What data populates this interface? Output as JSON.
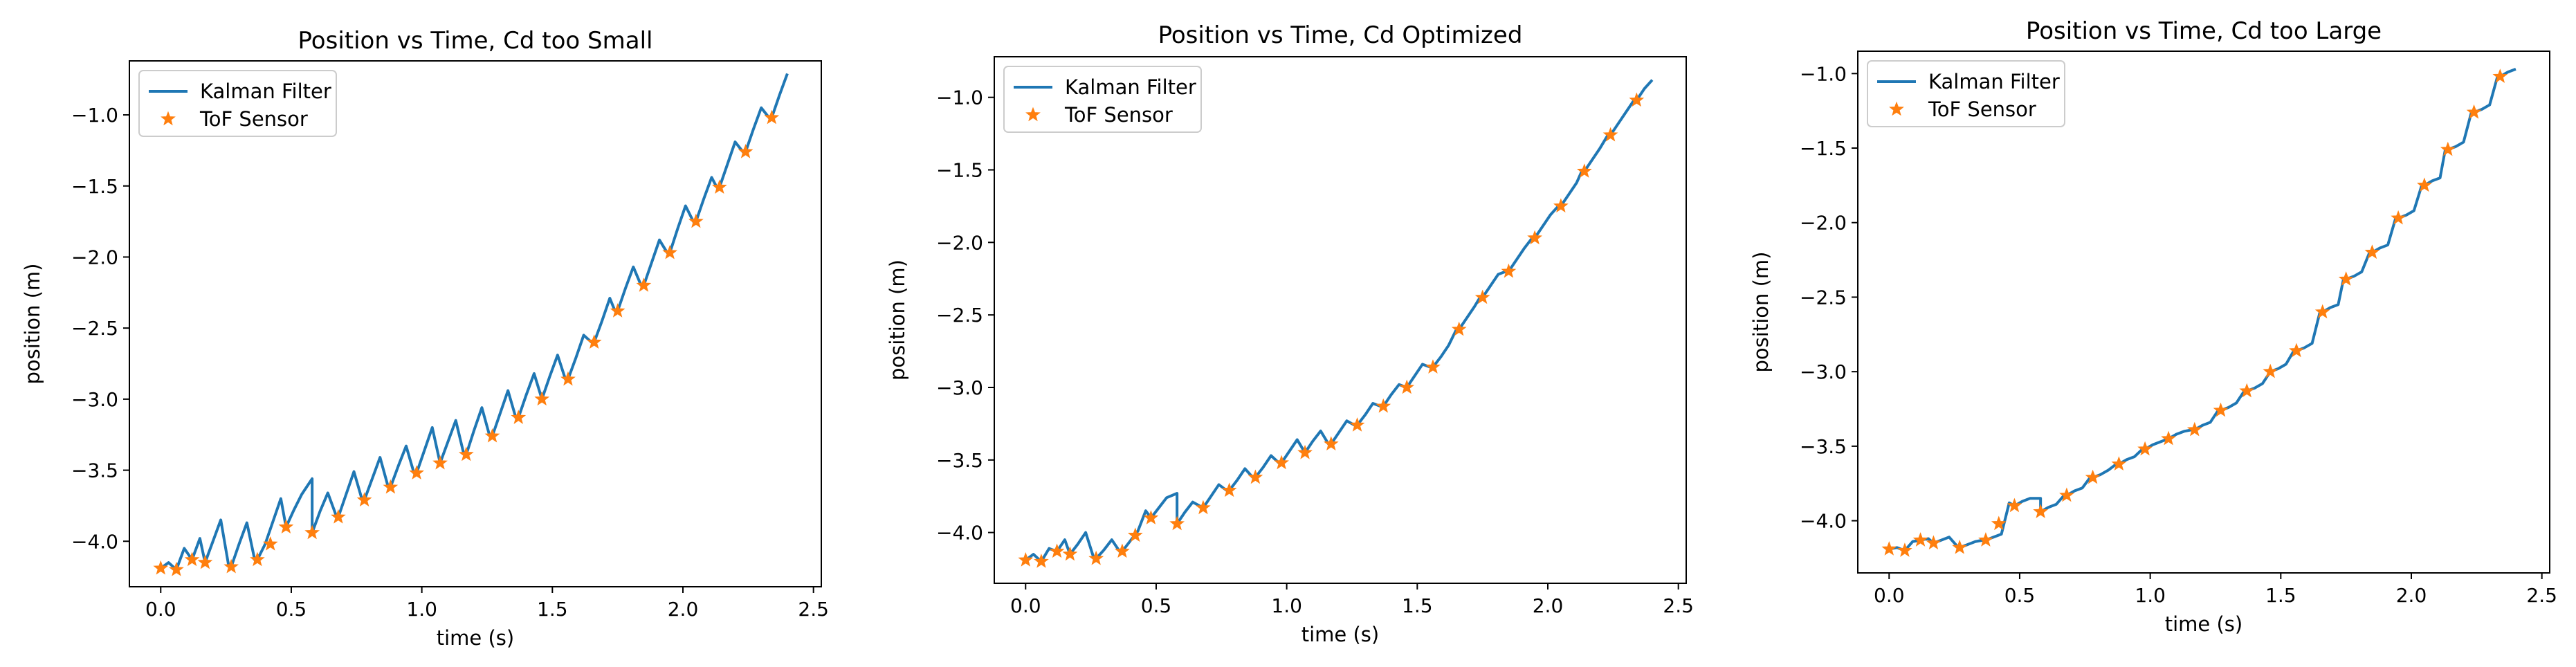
{
  "chart_data": [
    {
      "type": "line",
      "title": "Position vs Time, Cd too Small",
      "xlabel": "time (s)",
      "ylabel": "position (m)",
      "xlim": [
        -0.12,
        2.53
      ],
      "ylim": [
        -4.32,
        -0.62
      ],
      "xticks": [
        0.0,
        0.5,
        1.0,
        1.5,
        2.0,
        2.5
      ],
      "xtick_labels": [
        "0.0",
        "0.5",
        "1.0",
        "1.5",
        "2.0",
        "2.5"
      ],
      "yticks": [
        -4.0,
        -3.5,
        -3.0,
        -2.5,
        -2.0,
        -1.5,
        -1.0
      ],
      "ytick_labels": [
        "−4.0",
        "−3.5",
        "−3.0",
        "−2.5",
        "−2.0",
        "−1.5",
        "−1.0"
      ],
      "grid": false,
      "legend": "upper-left",
      "colors": {
        "kalman": "#1f77b4",
        "tof": "#ff7f0e"
      },
      "series": [
        {
          "name": "Kalman Filter",
          "style": "line",
          "x": [
            0.0,
            0.03,
            0.06,
            0.09,
            0.12,
            0.15,
            0.17,
            0.2,
            0.23,
            0.26,
            0.27,
            0.3,
            0.33,
            0.36,
            0.37,
            0.4,
            0.43,
            0.46,
            0.48,
            0.51,
            0.54,
            0.58,
            0.58,
            0.61,
            0.64,
            0.67,
            0.68,
            0.71,
            0.74,
            0.77,
            0.78,
            0.81,
            0.84,
            0.87,
            0.88,
            0.91,
            0.94,
            0.97,
            0.98,
            1.01,
            1.04,
            1.07,
            1.07,
            1.1,
            1.13,
            1.16,
            1.17,
            1.2,
            1.23,
            1.26,
            1.27,
            1.3,
            1.33,
            1.36,
            1.37,
            1.4,
            1.43,
            1.46,
            1.46,
            1.49,
            1.52,
            1.55,
            1.56,
            1.59,
            1.62,
            1.65,
            1.66,
            1.69,
            1.72,
            1.74,
            1.75,
            1.78,
            1.81,
            1.84,
            1.85,
            1.88,
            1.91,
            1.94,
            1.95,
            1.98,
            2.01,
            2.04,
            2.05,
            2.08,
            2.11,
            2.13,
            2.14,
            2.17,
            2.2,
            2.23,
            2.24,
            2.27,
            2.3,
            2.33,
            2.34,
            2.37,
            2.4
          ],
          "y": [
            -4.19,
            -4.15,
            -4.2,
            -4.05,
            -4.13,
            -3.98,
            -4.15,
            -4.0,
            -3.85,
            -4.17,
            -4.18,
            -4.02,
            -3.87,
            -4.13,
            -4.13,
            -4.02,
            -3.86,
            -3.7,
            -3.9,
            -3.78,
            -3.67,
            -3.56,
            -3.94,
            -3.79,
            -3.66,
            -3.81,
            -3.83,
            -3.67,
            -3.51,
            -3.7,
            -3.71,
            -3.56,
            -3.41,
            -3.61,
            -3.62,
            -3.47,
            -3.33,
            -3.52,
            -3.52,
            -3.36,
            -3.2,
            -3.45,
            -3.45,
            -3.3,
            -3.15,
            -3.38,
            -3.39,
            -3.22,
            -3.06,
            -3.26,
            -3.26,
            -3.1,
            -2.94,
            -3.13,
            -3.13,
            -2.97,
            -2.82,
            -3.0,
            -3.0,
            -2.84,
            -2.69,
            -2.86,
            -2.86,
            -2.71,
            -2.55,
            -2.6,
            -2.6,
            -2.45,
            -2.29,
            -2.38,
            -2.38,
            -2.22,
            -2.07,
            -2.2,
            -2.2,
            -2.04,
            -1.88,
            -1.97,
            -1.97,
            -1.8,
            -1.64,
            -1.75,
            -1.75,
            -1.59,
            -1.44,
            -1.51,
            -1.51,
            -1.35,
            -1.19,
            -1.26,
            -1.26,
            -1.1,
            -0.95,
            -1.02,
            -1.02,
            -0.86,
            -0.71
          ]
        },
        {
          "name": "ToF Sensor",
          "style": "marker",
          "x": [
            0.0,
            0.06,
            0.12,
            0.17,
            0.27,
            0.37,
            0.42,
            0.48,
            0.58,
            0.68,
            0.78,
            0.88,
            0.98,
            1.07,
            1.17,
            1.27,
            1.37,
            1.46,
            1.56,
            1.66,
            1.75,
            1.85,
            1.95,
            2.05,
            2.14,
            2.24,
            2.34
          ],
          "y": [
            -4.19,
            -4.2,
            -4.13,
            -4.15,
            -4.18,
            -4.13,
            -4.02,
            -3.9,
            -3.94,
            -3.83,
            -3.71,
            -3.62,
            -3.52,
            -3.45,
            -3.39,
            -3.26,
            -3.13,
            -3.0,
            -2.86,
            -2.6,
            -2.38,
            -2.2,
            -1.97,
            -1.75,
            -1.51,
            -1.26,
            -1.02
          ]
        }
      ]
    },
    {
      "type": "line",
      "title": "Position vs Time, Cd Optimized",
      "xlabel": "time (s)",
      "ylabel": "position (m)",
      "xlim": [
        -0.12,
        2.53
      ],
      "ylim": [
        -4.35,
        -0.72
      ],
      "xticks": [
        0.0,
        0.5,
        1.0,
        1.5,
        2.0,
        2.5
      ],
      "xtick_labels": [
        "0.0",
        "0.5",
        "1.0",
        "1.5",
        "2.0",
        "2.5"
      ],
      "yticks": [
        -4.0,
        -3.5,
        -3.0,
        -2.5,
        -2.0,
        -1.5,
        -1.0
      ],
      "ytick_labels": [
        "−4.0",
        "−3.5",
        "−3.0",
        "−2.5",
        "−2.0",
        "−1.5",
        "−1.0"
      ],
      "grid": false,
      "legend": "upper-left",
      "colors": {
        "kalman": "#1f77b4",
        "tof": "#ff7f0e"
      },
      "series": [
        {
          "name": "Kalman Filter",
          "style": "line",
          "x": [
            0.0,
            0.03,
            0.06,
            0.09,
            0.12,
            0.15,
            0.17,
            0.2,
            0.23,
            0.26,
            0.27,
            0.3,
            0.33,
            0.36,
            0.37,
            0.4,
            0.43,
            0.46,
            0.48,
            0.51,
            0.54,
            0.58,
            0.58,
            0.61,
            0.64,
            0.67,
            0.68,
            0.71,
            0.74,
            0.77,
            0.78,
            0.81,
            0.84,
            0.87,
            0.88,
            0.91,
            0.94,
            0.97,
            0.98,
            1.01,
            1.04,
            1.07,
            1.07,
            1.1,
            1.13,
            1.16,
            1.17,
            1.2,
            1.23,
            1.26,
            1.27,
            1.3,
            1.33,
            1.36,
            1.37,
            1.4,
            1.43,
            1.46,
            1.46,
            1.49,
            1.52,
            1.55,
            1.56,
            1.59,
            1.62,
            1.65,
            1.66,
            1.69,
            1.72,
            1.74,
            1.75,
            1.78,
            1.81,
            1.84,
            1.85,
            1.88,
            1.91,
            1.94,
            1.95,
            1.98,
            2.01,
            2.04,
            2.05,
            2.08,
            2.11,
            2.13,
            2.14,
            2.17,
            2.2,
            2.23,
            2.24,
            2.27,
            2.3,
            2.33,
            2.34,
            2.37,
            2.4
          ],
          "y": [
            -4.19,
            -4.15,
            -4.2,
            -4.11,
            -4.13,
            -4.05,
            -4.15,
            -4.08,
            -4.0,
            -4.17,
            -4.18,
            -4.12,
            -4.05,
            -4.13,
            -4.13,
            -4.06,
            -3.99,
            -3.85,
            -3.9,
            -3.83,
            -3.76,
            -3.73,
            -3.94,
            -3.86,
            -3.79,
            -3.82,
            -3.83,
            -3.75,
            -3.67,
            -3.71,
            -3.71,
            -3.64,
            -3.56,
            -3.62,
            -3.62,
            -3.55,
            -3.47,
            -3.52,
            -3.52,
            -3.44,
            -3.36,
            -3.45,
            -3.45,
            -3.37,
            -3.3,
            -3.39,
            -3.39,
            -3.31,
            -3.23,
            -3.26,
            -3.26,
            -3.19,
            -3.11,
            -3.13,
            -3.13,
            -3.05,
            -2.98,
            -3.0,
            -3.0,
            -2.92,
            -2.84,
            -2.86,
            -2.86,
            -2.79,
            -2.71,
            -2.6,
            -2.6,
            -2.52,
            -2.44,
            -2.38,
            -2.38,
            -2.3,
            -2.22,
            -2.2,
            -2.2,
            -2.12,
            -2.04,
            -1.97,
            -1.97,
            -1.89,
            -1.81,
            -1.75,
            -1.75,
            -1.67,
            -1.59,
            -1.51,
            -1.51,
            -1.43,
            -1.35,
            -1.26,
            -1.26,
            -1.18,
            -1.1,
            -1.02,
            -1.02,
            -0.94,
            -0.88
          ]
        },
        {
          "name": "ToF Sensor",
          "style": "marker",
          "x": [
            0.0,
            0.06,
            0.12,
            0.17,
            0.27,
            0.37,
            0.42,
            0.48,
            0.58,
            0.68,
            0.78,
            0.88,
            0.98,
            1.07,
            1.17,
            1.27,
            1.37,
            1.46,
            1.56,
            1.66,
            1.75,
            1.85,
            1.95,
            2.05,
            2.14,
            2.24,
            2.34
          ],
          "y": [
            -4.19,
            -4.2,
            -4.13,
            -4.15,
            -4.18,
            -4.13,
            -4.02,
            -3.9,
            -3.94,
            -3.83,
            -3.71,
            -3.62,
            -3.52,
            -3.45,
            -3.39,
            -3.26,
            -3.13,
            -3.0,
            -2.86,
            -2.6,
            -2.38,
            -2.2,
            -1.97,
            -1.75,
            -1.51,
            -1.26,
            -1.02
          ]
        }
      ]
    },
    {
      "type": "line",
      "title": "Position vs Time, Cd too Large",
      "xlabel": "time (s)",
      "ylabel": "position (m)",
      "xlim": [
        -0.12,
        2.53
      ],
      "ylim": [
        -4.35,
        -0.85
      ],
      "xticks": [
        0.0,
        0.5,
        1.0,
        1.5,
        2.0,
        2.5
      ],
      "xtick_labels": [
        "0.0",
        "0.5",
        "1.0",
        "1.5",
        "2.0",
        "2.5"
      ],
      "yticks": [
        -4.0,
        -3.5,
        -3.0,
        -2.5,
        -2.0,
        -1.5,
        -1.0
      ],
      "ytick_labels": [
        "−4.0",
        "−3.5",
        "−3.0",
        "−2.5",
        "−2.0",
        "−1.5",
        "−1.0"
      ],
      "grid": false,
      "legend": "upper-left",
      "colors": {
        "kalman": "#1f77b4",
        "tof": "#ff7f0e"
      },
      "series": [
        {
          "name": "Kalman Filter",
          "style": "line",
          "x": [
            0.0,
            0.03,
            0.06,
            0.09,
            0.12,
            0.15,
            0.17,
            0.2,
            0.23,
            0.26,
            0.27,
            0.3,
            0.33,
            0.36,
            0.37,
            0.4,
            0.43,
            0.46,
            0.48,
            0.51,
            0.54,
            0.58,
            0.58,
            0.61,
            0.64,
            0.67,
            0.68,
            0.71,
            0.74,
            0.77,
            0.78,
            0.81,
            0.84,
            0.87,
            0.88,
            0.91,
            0.94,
            0.97,
            0.98,
            1.01,
            1.04,
            1.07,
            1.07,
            1.1,
            1.13,
            1.16,
            1.17,
            1.2,
            1.23,
            1.26,
            1.27,
            1.3,
            1.33,
            1.36,
            1.37,
            1.4,
            1.43,
            1.46,
            1.46,
            1.49,
            1.52,
            1.55,
            1.56,
            1.59,
            1.62,
            1.65,
            1.66,
            1.69,
            1.72,
            1.74,
            1.75,
            1.78,
            1.81,
            1.84,
            1.85,
            1.88,
            1.91,
            1.94,
            1.95,
            1.98,
            2.01,
            2.04,
            2.05,
            2.08,
            2.11,
            2.13,
            2.14,
            2.17,
            2.2,
            2.23,
            2.24,
            2.27,
            2.3,
            2.33,
            2.34,
            2.37,
            2.4
          ],
          "y": [
            -4.19,
            -4.18,
            -4.2,
            -4.14,
            -4.13,
            -4.12,
            -4.15,
            -4.13,
            -4.11,
            -4.17,
            -4.18,
            -4.16,
            -4.14,
            -4.13,
            -4.13,
            -4.11,
            -4.09,
            -3.88,
            -3.9,
            -3.87,
            -3.85,
            -3.85,
            -3.94,
            -3.91,
            -3.89,
            -3.83,
            -3.83,
            -3.8,
            -3.78,
            -3.71,
            -3.71,
            -3.69,
            -3.66,
            -3.62,
            -3.62,
            -3.59,
            -3.57,
            -3.52,
            -3.52,
            -3.49,
            -3.47,
            -3.45,
            -3.45,
            -3.42,
            -3.4,
            -3.39,
            -3.39,
            -3.36,
            -3.34,
            -3.26,
            -3.26,
            -3.24,
            -3.21,
            -3.13,
            -3.13,
            -3.11,
            -3.08,
            -3.0,
            -3.0,
            -2.98,
            -2.95,
            -2.86,
            -2.86,
            -2.84,
            -2.81,
            -2.6,
            -2.6,
            -2.57,
            -2.55,
            -2.38,
            -2.38,
            -2.36,
            -2.33,
            -2.2,
            -2.2,
            -2.17,
            -2.15,
            -1.97,
            -1.97,
            -1.95,
            -1.92,
            -1.75,
            -1.75,
            -1.72,
            -1.7,
            -1.51,
            -1.51,
            -1.49,
            -1.46,
            -1.26,
            -1.26,
            -1.24,
            -1.21,
            -1.02,
            -1.02,
            -0.99,
            -0.97
          ]
        },
        {
          "name": "ToF Sensor",
          "style": "marker",
          "x": [
            0.0,
            0.06,
            0.12,
            0.17,
            0.27,
            0.37,
            0.42,
            0.48,
            0.58,
            0.68,
            0.78,
            0.88,
            0.98,
            1.07,
            1.17,
            1.27,
            1.37,
            1.46,
            1.56,
            1.66,
            1.75,
            1.85,
            1.95,
            2.05,
            2.14,
            2.24,
            2.34
          ],
          "y": [
            -4.19,
            -4.2,
            -4.13,
            -4.15,
            -4.18,
            -4.13,
            -4.02,
            -3.9,
            -3.94,
            -3.83,
            -3.71,
            -3.62,
            -3.52,
            -3.45,
            -3.39,
            -3.26,
            -3.13,
            -3.0,
            -2.86,
            -2.6,
            -2.38,
            -2.2,
            -1.97,
            -1.75,
            -1.51,
            -1.26,
            -1.02
          ]
        }
      ]
    }
  ]
}
